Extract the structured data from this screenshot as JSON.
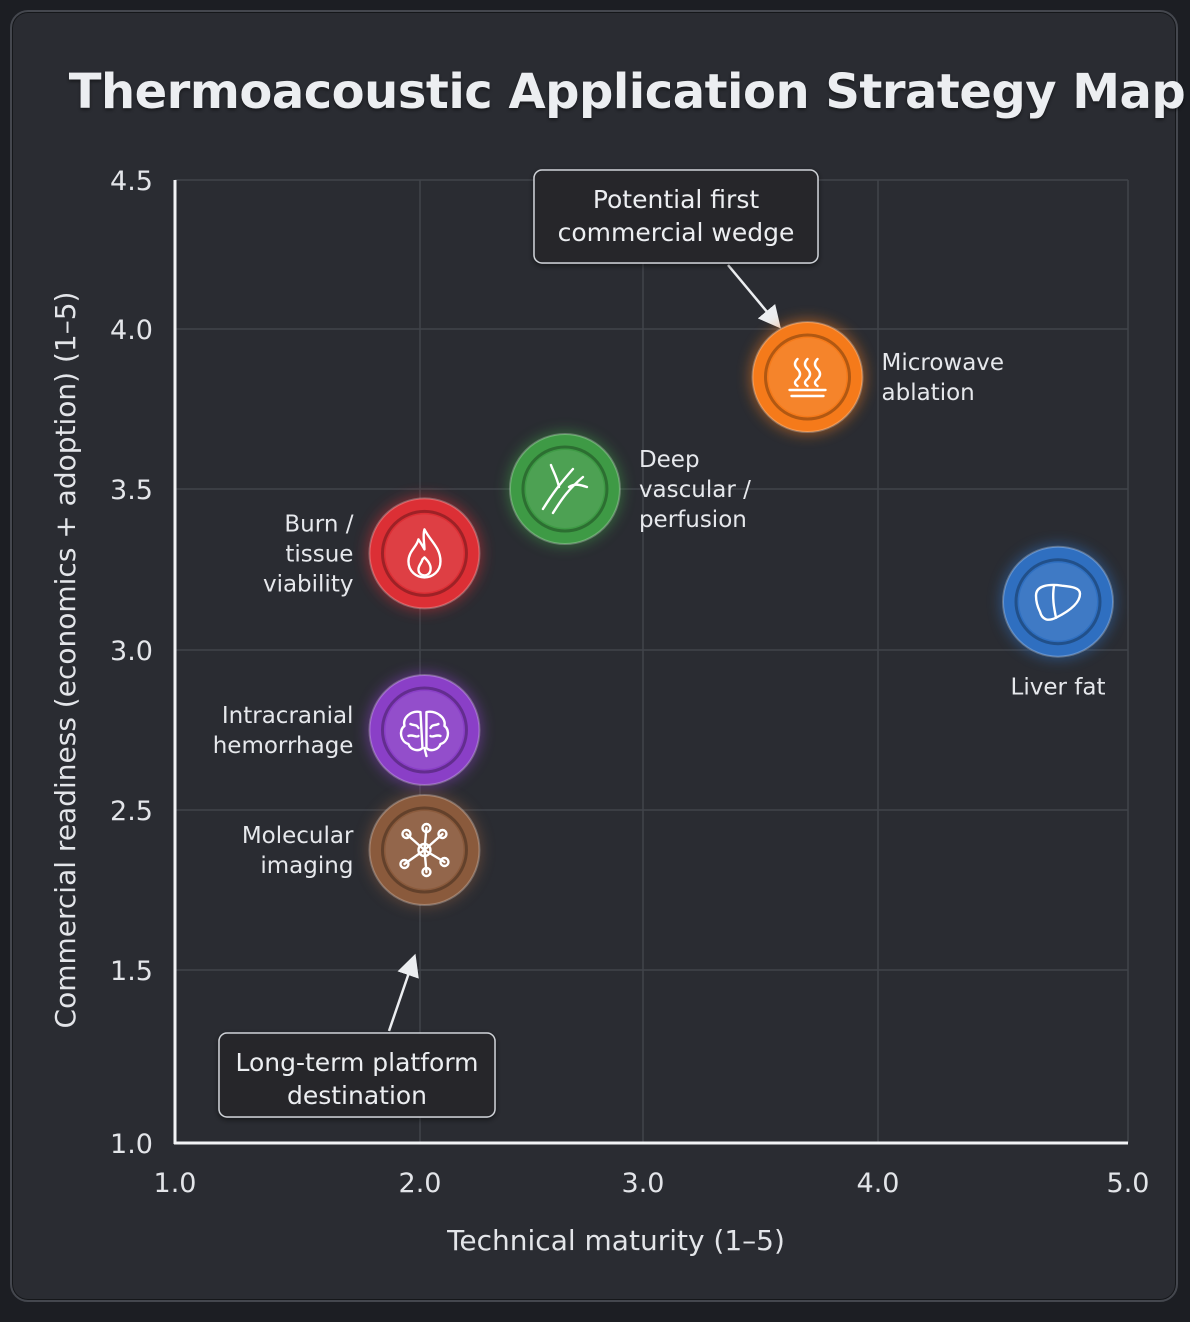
{
  "title": "Thermoacoustic Application Strategy Map",
  "chart_data": {
    "type": "scatter",
    "title": "Thermoacoustic Application Strategy Map",
    "xlabel": "Technical maturity (1–5)",
    "ylabel": "Commercial readiness (economics + adoption) (1–5)",
    "xlim": [
      1.0,
      5.0
    ],
    "x_ticks": [
      1.0,
      2.0,
      3.0,
      4.0,
      5.0
    ],
    "x_tick_labels": [
      "1.0",
      "2.0",
      "3.0",
      "4.0",
      "5.0"
    ],
    "y_ticks": [
      1.0,
      1.5,
      2.5,
      3.0,
      3.5,
      4.0,
      4.5
    ],
    "y_tick_labels": [
      "1.0",
      "1.5",
      "2.5",
      "3.0",
      "3.5",
      "4.0",
      "4.5"
    ],
    "grid": true,
    "points": [
      {
        "label_lines": [
          "Microwave",
          "ablation"
        ],
        "x": 3.7,
        "y": 3.85,
        "color": "#f57a1a",
        "icon": "steam-heat-icon",
        "label_side": "right"
      },
      {
        "label_lines": [
          "Deep",
          "vascular /",
          "perfusion"
        ],
        "x": 2.65,
        "y": 3.5,
        "color": "#3e9a45",
        "icon": "blood-vessel-icon",
        "label_side": "right"
      },
      {
        "label_lines": [
          "Burn /",
          "tissue",
          "viability"
        ],
        "x": 2.02,
        "y": 3.3,
        "color": "#dc2f35",
        "icon": "flame-icon",
        "label_side": "left"
      },
      {
        "label_lines": [
          "Liver fat"
        ],
        "x": 4.72,
        "y": 3.15,
        "color": "#2f6fc0",
        "icon": "liver-icon",
        "label_side": "below"
      },
      {
        "label_lines": [
          "Intracranial",
          "hemorrhage"
        ],
        "x": 2.02,
        "y": 2.75,
        "color": "#8a3fc7",
        "icon": "brain-icon",
        "label_side": "left"
      },
      {
        "label_lines": [
          "Molecular",
          "imaging"
        ],
        "x": 2.02,
        "y": 2.25,
        "color": "#8a5a3c",
        "icon": "molecule-icon",
        "label_side": "left"
      }
    ],
    "annotations": [
      {
        "text_lines": [
          "Potential first",
          "commercial wedge"
        ],
        "target": "Microwave ablation"
      },
      {
        "text_lines": [
          "Long-term platform",
          "destination"
        ],
        "target": "Molecular imaging"
      }
    ]
  }
}
